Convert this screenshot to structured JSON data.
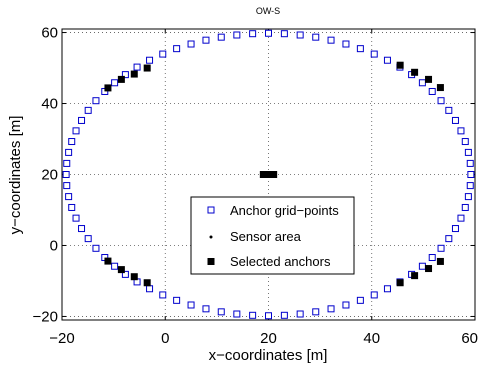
{
  "chart_data": {
    "type": "scatter",
    "title": "OW-S",
    "xlabel": "x−coordinates [m]",
    "ylabel": "y−coordinates [m]",
    "xlim": [
      -20,
      60
    ],
    "ylim": [
      -21,
      61
    ],
    "xticks": [
      -20,
      0,
      20,
      40,
      60
    ],
    "yticks": [
      -20,
      0,
      20,
      40,
      60
    ],
    "xtick_labels": [
      "−20",
      "0",
      "20",
      "40",
      "60"
    ],
    "ytick_labels": [
      "−20",
      "0",
      "20",
      "40",
      "60"
    ],
    "grid": true,
    "legend_position": "bottom-center",
    "series": [
      {
        "name": "Anchor grid−points",
        "marker": "open-square",
        "color": "#0000cc",
        "ellipse": {
          "center": [
            20,
            20
          ],
          "radius_x": 39.2,
          "radius_y": 39.8,
          "count": 80
        }
      },
      {
        "name": "Sensor area",
        "marker": "dot",
        "color": "#000000",
        "points": [
          [
            20,
            20
          ]
        ]
      },
      {
        "name": "Selected anchors",
        "marker": "filled-square",
        "color": "#000000",
        "points": [
          [
            -11.1,
            44.4
          ],
          [
            -8.5,
            46.8
          ],
          [
            -6.0,
            48.3
          ],
          [
            -3.5,
            50.0
          ],
          [
            45.5,
            50.8
          ],
          [
            48.3,
            48.8
          ],
          [
            51.0,
            46.8
          ],
          [
            53.3,
            44.5
          ],
          [
            -11.1,
            -4.4
          ],
          [
            -8.5,
            -6.8
          ],
          [
            -6.0,
            -8.8
          ],
          [
            -3.5,
            -10.5
          ],
          [
            45.5,
            -10.5
          ],
          [
            48.3,
            -8.5
          ],
          [
            51.0,
            -6.5
          ],
          [
            53.3,
            -4.5
          ],
          [
            19.0,
            20
          ],
          [
            19.7,
            20
          ],
          [
            20.3,
            20
          ],
          [
            21.0,
            20
          ]
        ]
      }
    ]
  }
}
